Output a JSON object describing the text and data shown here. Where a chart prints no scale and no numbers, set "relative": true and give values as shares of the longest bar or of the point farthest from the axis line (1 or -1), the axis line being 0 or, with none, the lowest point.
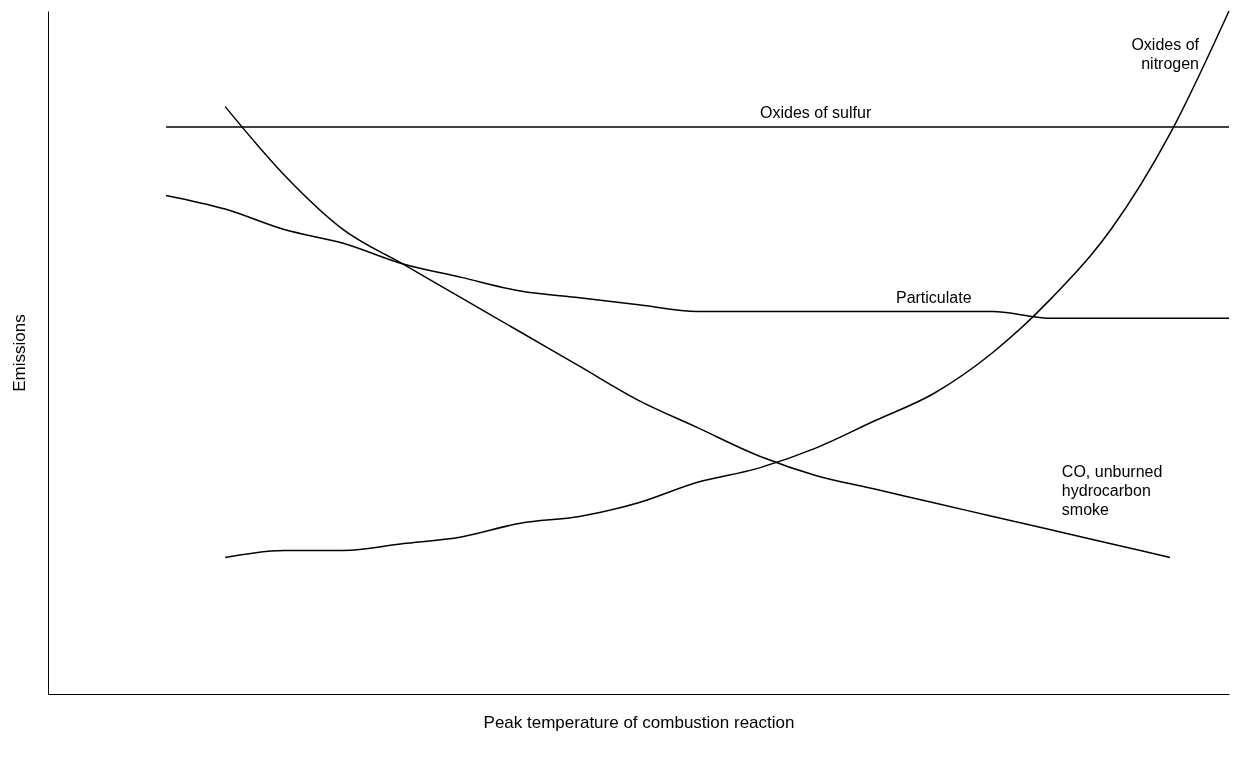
{
  "chart_data": {
    "type": "line",
    "relative": true,
    "xlabel": "Peak temperature of combustion reaction",
    "ylabel": "Emissions",
    "legend": false,
    "grid": false,
    "marker": "none",
    "line_style": "solid",
    "categories": [
      null,
      null,
      null,
      null,
      null,
      null,
      null,
      null,
      null,
      null,
      null,
      null,
      null,
      null,
      null,
      null,
      null,
      null,
      null,
      null,
      null
    ],
    "series": [
      {
        "name": "Oxides of sulfur",
        "color": "#000000",
        "values": [
          null,
          null,
          0.83,
          0.83,
          0.83,
          0.83,
          0.83,
          0.83,
          0.83,
          0.83,
          0.83,
          0.83,
          0.83,
          0.83,
          0.83,
          0.83,
          0.83,
          0.83,
          0.83,
          0.83,
          0.83
        ]
      },
      {
        "name": "Particulate",
        "color": "#000000",
        "values": [
          null,
          null,
          0.73,
          0.71,
          0.68,
          0.66,
          0.63,
          0.61,
          0.59,
          0.58,
          0.57,
          0.56,
          0.56,
          0.56,
          0.56,
          0.56,
          0.56,
          0.55,
          0.55,
          0.55,
          0.55
        ]
      },
      {
        "name": "CO, unburned\nhydrocarbon\nsmoke",
        "color": "#000000",
        "values": [
          null,
          null,
          null,
          0.86,
          0.76,
          0.68,
          0.63,
          0.58,
          0.53,
          0.48,
          0.43,
          0.39,
          0.35,
          0.32,
          0.3,
          0.28,
          0.26,
          0.24,
          0.22,
          0.2,
          null
        ]
      },
      {
        "name": "Oxides of\nnitrogen",
        "color": "#000000",
        "values": [
          null,
          null,
          null,
          0.2,
          0.21,
          0.21,
          0.22,
          0.23,
          0.25,
          0.26,
          0.28,
          0.31,
          0.33,
          0.36,
          0.4,
          0.44,
          0.5,
          0.58,
          0.68,
          0.82,
          1.0
        ]
      }
    ]
  }
}
